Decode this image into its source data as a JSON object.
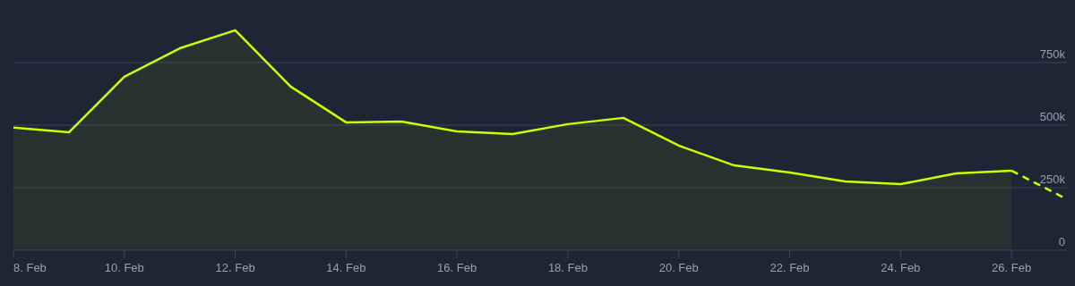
{
  "chart_data": {
    "type": "area",
    "x": [
      "--02-08",
      "--02-09",
      "--02-10",
      "--02-11",
      "--02-12",
      "--02-13",
      "--02-14",
      "--02-15",
      "--02-16",
      "--02-17",
      "--02-18",
      "--02-19",
      "--02-20",
      "--02-21",
      "--02-22",
      "--02-23",
      "--02-24",
      "--02-25",
      "--02-26"
    ],
    "series": [
      {
        "color": "#ccff00",
        "values": [
          490000,
          471000,
          693000,
          807000,
          879000,
          654000,
          511000,
          514000,
          475000,
          464000,
          504000,
          529000,
          418000,
          339000,
          311000,
          275000,
          264000,
          307000,
          318000
        ]
      },
      {
        "type": "line",
        "line_style": "dashed",
        "color": "#ccff00",
        "x": [
          "--02-26",
          "--02-27"
        ],
        "values": [
          318000,
          204000
        ]
      }
    ],
    "xlim": [
      "--02-08",
      "--02-27"
    ],
    "xticks": [
      {
        "value": "--02-08",
        "label": "8. Feb"
      },
      {
        "value": "--02-10",
        "label": "10. Feb"
      },
      {
        "value": "--02-12",
        "label": "12. Feb"
      },
      {
        "value": "--02-14",
        "label": "14. Feb"
      },
      {
        "value": "--02-16",
        "label": "16. Feb"
      },
      {
        "value": "--02-18",
        "label": "18. Feb"
      },
      {
        "value": "--02-20",
        "label": "20. Feb"
      },
      {
        "value": "--02-22",
        "label": "22. Feb"
      },
      {
        "value": "--02-24",
        "label": "24. Feb"
      },
      {
        "value": "--02-26",
        "label": "26. Feb"
      }
    ],
    "ylim": [
      0,
      1000000
    ],
    "yticks": [
      0,
      {
        "value": 250000,
        "label": "250k"
      },
      {
        "value": 500000,
        "label": "500k"
      },
      {
        "value": 750000,
        "label": "750k"
      }
    ],
    "grid": "y",
    "line_style": "solid"
  }
}
